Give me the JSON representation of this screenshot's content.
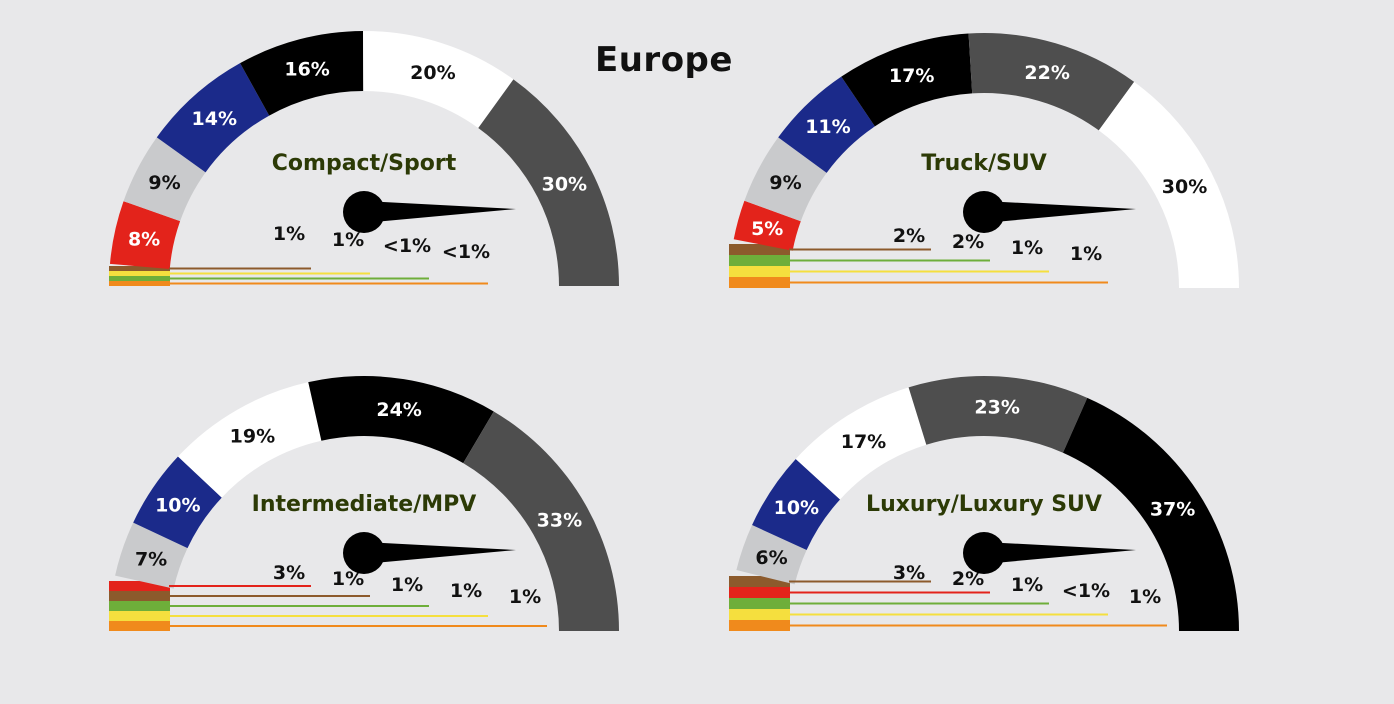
{
  "title": "Europe",
  "colors": {
    "red": "#e3231b",
    "brown": "#8c5a2c",
    "yellow": "#f5df3e",
    "green": "#6eae3a",
    "orange": "#f08a1c",
    "silver": "#c9cacc",
    "blue": "#1b2a8a",
    "black": "#000000",
    "white": "#ffffff",
    "gray": "#4e4e4e",
    "label_green": "#2c3a06"
  },
  "chart_data": [
    {
      "type": "gauge",
      "title": "Compact/Sport",
      "segments": [
        {
          "label": "8%",
          "value": 8,
          "color": "red"
        },
        {
          "label": "9%",
          "value": 9,
          "color": "silver"
        },
        {
          "label": "14%",
          "value": 14,
          "color": "blue"
        },
        {
          "label": "16%",
          "value": 16,
          "color": "black"
        },
        {
          "label": "20%",
          "value": 20,
          "color": "white"
        },
        {
          "label": "30%",
          "value": 30,
          "color": "gray"
        }
      ],
      "small": [
        {
          "label": "1%",
          "value": 1,
          "color": "brown"
        },
        {
          "label": "1%",
          "value": 1,
          "color": "yellow"
        },
        {
          "label": "<1%",
          "value": 0.5,
          "color": "green"
        },
        {
          "label": "<1%",
          "value": 0.5,
          "color": "orange"
        }
      ]
    },
    {
      "type": "gauge",
      "title": "Truck/SUV",
      "segments": [
        {
          "label": "5%",
          "value": 5,
          "color": "red"
        },
        {
          "label": "9%",
          "value": 9,
          "color": "silver"
        },
        {
          "label": "11%",
          "value": 11,
          "color": "blue"
        },
        {
          "label": "17%",
          "value": 17,
          "color": "black"
        },
        {
          "label": "22%",
          "value": 22,
          "color": "gray"
        },
        {
          "label": "30%",
          "value": 30,
          "color": "white"
        }
      ],
      "small": [
        {
          "label": "2%",
          "value": 2,
          "color": "brown"
        },
        {
          "label": "2%",
          "value": 2,
          "color": "green"
        },
        {
          "label": "1%",
          "value": 1,
          "color": "yellow"
        },
        {
          "label": "1%",
          "value": 1,
          "color": "orange"
        }
      ]
    },
    {
      "type": "gauge",
      "title": "Intermediate/MPV",
      "segments": [
        {
          "label": "7%",
          "value": 7,
          "color": "silver"
        },
        {
          "label": "10%",
          "value": 10,
          "color": "blue"
        },
        {
          "label": "19%",
          "value": 19,
          "color": "white"
        },
        {
          "label": "24%",
          "value": 24,
          "color": "black"
        },
        {
          "label": "33%",
          "value": 33,
          "color": "gray"
        }
      ],
      "small": [
        {
          "label": "3%",
          "value": 3,
          "color": "red"
        },
        {
          "label": "1%",
          "value": 1,
          "color": "brown"
        },
        {
          "label": "1%",
          "value": 1,
          "color": "green"
        },
        {
          "label": "1%",
          "value": 1,
          "color": "yellow"
        },
        {
          "label": "1%",
          "value": 1,
          "color": "orange"
        }
      ]
    },
    {
      "type": "gauge",
      "title": "Luxury/Luxury SUV",
      "segments": [
        {
          "label": "6%",
          "value": 6,
          "color": "silver"
        },
        {
          "label": "10%",
          "value": 10,
          "color": "blue"
        },
        {
          "label": "17%",
          "value": 17,
          "color": "white"
        },
        {
          "label": "23%",
          "value": 23,
          "color": "gray"
        },
        {
          "label": "37%",
          "value": 37,
          "color": "black"
        }
      ],
      "small": [
        {
          "label": "3%",
          "value": 3,
          "color": "brown"
        },
        {
          "label": "2%",
          "value": 2,
          "color": "red"
        },
        {
          "label": "1%",
          "value": 1,
          "color": "green"
        },
        {
          "label": "<1%",
          "value": 0.5,
          "color": "yellow"
        },
        {
          "label": "1%",
          "value": 1,
          "color": "orange"
        }
      ]
    }
  ]
}
